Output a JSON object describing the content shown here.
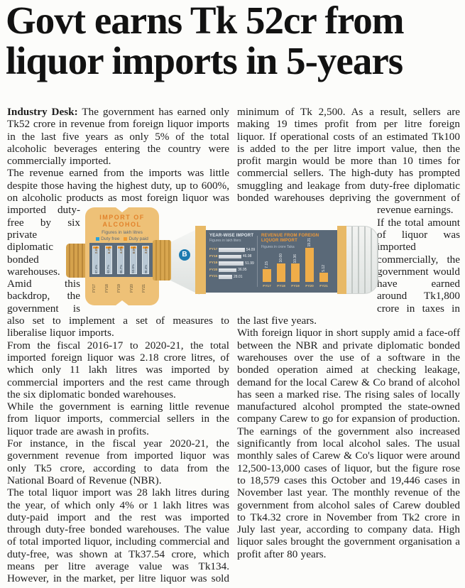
{
  "headline": "Govt earns Tk 52cr from liquor imports in 5-years",
  "columns": {
    "left": {
      "lead_label": "Industry Desk:",
      "p1": " The government has earned only Tk52 crore in revenue from foreign liquor imports in the last five years as only 5% of the total alcoholic beverages entering the country were commercially imported.",
      "p2_before_graphic": "The revenue earned from the imports was little despite those having the highest duty, up to 600%, on alcoholic products as most ",
      "p2_after_graphic": "foreign liquor was imported duty-free by six private diplomatic bonded warehouses. Amid this backdrop, the government is also set to implement a set of measures to liberalise liquor imports.",
      "p3": "From the fiscal 2016-17 to 2020-21, the total imported foreign liquor was 2.18 crore litres, of which only 11 lakh litres was imported by commercial importers and the rest came through the six diplomatic bonded warehouses.",
      "p4": "While the government is earning little revenue from liquor imports, commercial sellers in the liquor trade are awash in profits.",
      "p5": "For instance, in the fiscal year 2020-21, the government revenue from imported liquor was only Tk5 crore, according to data from the National Board of Revenue (NBR).",
      "p6": "The total liquor import was 28 lakh litres during the year, of which only 4% or 1 lakh litres was duty-paid import and the rest was imported through duty-free bonded warehouses. The value of total imported liquor, including commercial and duty-free, was shown at Tk37.54 crore, which means per litre average value was Tk134. However, in the market, per litre liquor was sold at a"
    },
    "right": {
      "p1_before_graphic": "minimum of Tk 2,500. As a result, sellers are making 19 times profit from per litre foreign liquor. If operational costs of an estimated Tk100 is added to the per litre import value, then the profit margin would be more than 10 times for commercial sellers. The high-duty has prompted smuggling and leakage from duty-free diplomatic bonded warehouses depriving the government of ",
      "p1_after_graphic": "revenue earnings.",
      "p2": "If the total amount of liquor was imported commercially, the government would have earned around Tk1,800 crore in taxes in the last five years.",
      "p3": "With foreign liquor in short supply amid a face-off between the NBR and private diplomatic bonded warehouses over the use of a software in the bonded operation aimed at checking leakage, demand for the local Carew & Co brand of alcohol has seen a marked rise. The rising sales of locally manufactured alcohol prompted the state-owned company Carew to go for expansion of production. The earnings of the government also increased significantly from local alcohol sales. The usual monthly sales of Carew & Co's liquor were around 12,500-13,000 cases of liquor, but the figure rose to 18,579 cases this October and 19,446 cases in November last year. The monthly revenue of the government from alcohol sales of Carew doubled to Tk4.32 crore in November from Tk2 crore in July last year, according to company data. High liquor sales brought the government organisation a profit after 80 years."
    }
  },
  "infographic": {
    "bottle_logo_letter": "B",
    "colors": {
      "badge_gold": "#eec177",
      "slate": "#5a6978",
      "accent_orange": "#f09a30",
      "legend_blue": "#2aa3dc",
      "silver_bar": "#d8dde2",
      "gold_bar": "#efad49"
    }
  },
  "chart_data": [
    {
      "id": "import-of-alcohol-share",
      "type": "bar",
      "subtype": "stacked-vertical",
      "title": "IMPORT OF ALCOHOL",
      "subtitle": "Figures in lakh litres",
      "legend": [
        "Duty free",
        "Duty paid"
      ],
      "legend_colors": [
        "#2aa3dc",
        "#f09a30"
      ],
      "legend_position": "top",
      "categories": [
        "FY17",
        "FY18",
        "FY19",
        "FY20",
        "FY21"
      ],
      "series": [
        {
          "name": "Duty free",
          "values": [
            97.4,
            93.7,
            95.7,
            92.0,
            96.4
          ]
        },
        {
          "name": "Duty paid",
          "values": [
            2.6,
            6.3,
            4.3,
            8.0,
            3.6
          ]
        }
      ],
      "unit": "%",
      "values_estimated": true
    },
    {
      "id": "year-wise-import",
      "type": "bar",
      "subtype": "horizontal",
      "title": "YEAR-WISE IMPORT",
      "subtitle": "Figures in lakh liters",
      "categories": [
        "FY17",
        "FY18",
        "FY19",
        "FY20",
        "FY21"
      ],
      "values": [
        54.09,
        46.98,
        51.99,
        36.95,
        28.01
      ],
      "value_labels": [
        "54.09",
        "46.98",
        "51.99",
        "36.95",
        "28.01"
      ],
      "xlim": [
        0,
        56
      ],
      "grid": false
    },
    {
      "id": "revenue-from-foreign-liquor-import",
      "type": "bar",
      "subtype": "vertical",
      "title": "REVENUE FROM FOREIGN LIQUOR IMPORT",
      "subtitle": "Figures in crore Taka",
      "categories": [
        "FY17",
        "FY18",
        "FY19",
        "FY20",
        "FY21"
      ],
      "values": [
        7.15,
        10.6,
        10.36,
        19.21,
        5.12
      ],
      "value_labels": [
        "7.15",
        "10.60",
        "10.36",
        "19.21",
        "5.12"
      ],
      "ylim": [
        0,
        20
      ],
      "grid": false
    }
  ]
}
